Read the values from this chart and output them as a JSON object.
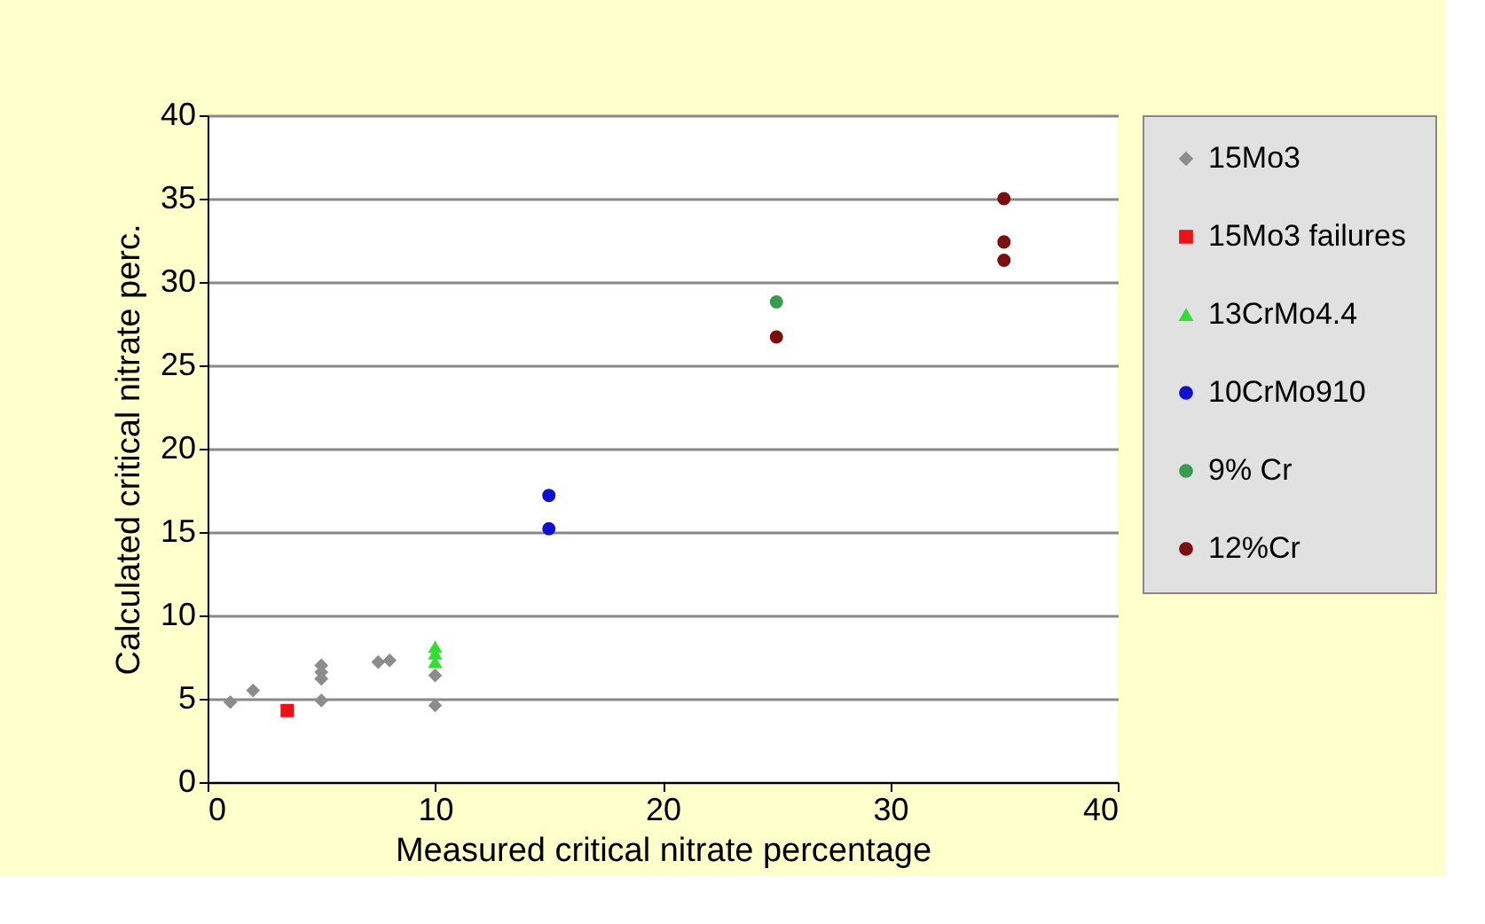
{
  "chart_data": {
    "type": "scatter",
    "xlabel": "Measured critical nitrate percentage",
    "ylabel": "Calculated critical nitrate perc.",
    "xlim": [
      0,
      40
    ],
    "xticks": [
      0,
      10,
      20,
      30,
      40
    ],
    "ylim": [
      0,
      40
    ],
    "yticks": [
      0,
      5,
      10,
      15,
      20,
      25,
      30,
      35,
      40
    ],
    "grid": "y",
    "legend": "right",
    "series": [
      {
        "name": "15Mo3",
        "color": "#8c8c8c",
        "marker": "diamond",
        "x": [
          1,
          2,
          5,
          5,
          5,
          5,
          7.5,
          8,
          10,
          10
        ],
        "values": [
          4.8,
          5.5,
          4.9,
          6.2,
          6.6,
          7.0,
          7.2,
          7.3,
          4.6,
          6.4
        ]
      },
      {
        "name": "15Mo3 failures",
        "color": "#e8141a",
        "marker": "square",
        "x": [
          3.5
        ],
        "values": [
          4.3
        ]
      },
      {
        "name": "13CrMo4.4",
        "color": "#33dd33",
        "marker": "triangle",
        "x": [
          10,
          10,
          10
        ],
        "values": [
          7.2,
          7.7,
          8.1
        ]
      },
      {
        "name": "10CrMo910",
        "color": "#1010cc",
        "marker": "circle",
        "x": [
          15,
          15
        ],
        "values": [
          15.2,
          17.2
        ]
      },
      {
        "name": "9% Cr",
        "color": "#3a9a50",
        "marker": "circle",
        "x": [
          25
        ],
        "values": [
          28.8
        ]
      },
      {
        "name": "12%Cr",
        "color": "#7a0f10",
        "marker": "circle",
        "x": [
          25,
          35,
          35,
          35
        ],
        "values": [
          26.7,
          31.3,
          32.4,
          35.0
        ]
      }
    ]
  }
}
